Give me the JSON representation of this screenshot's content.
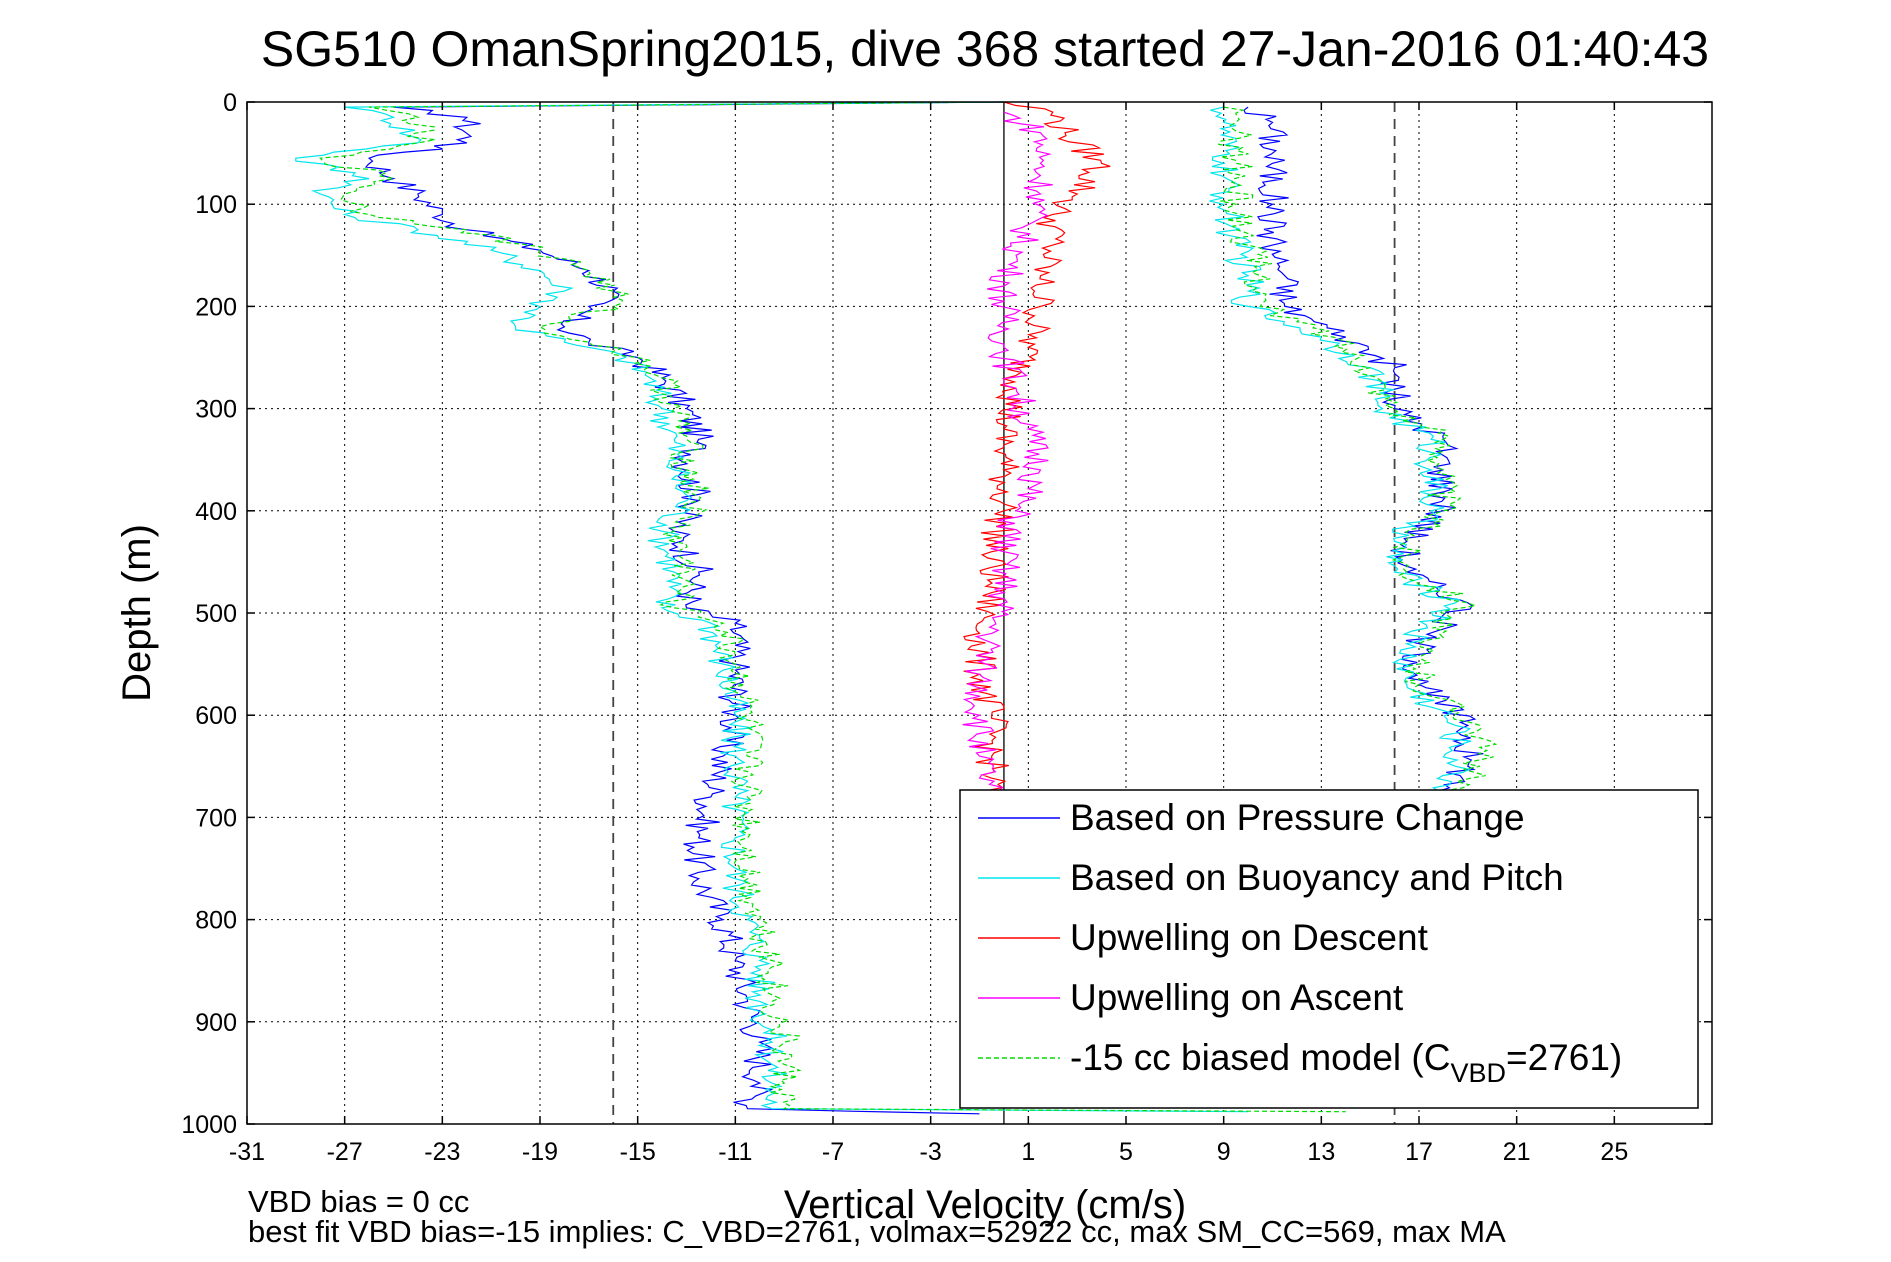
{
  "chart_data": {
    "type": "line",
    "title": "SG510 OmanSpring2015, dive 368 started 27-Jan-2016 01:40:43",
    "xlabel": "Vertical Velocity (cm/s)",
    "ylabel": "Depth (m)",
    "xlim": [
      -31,
      29
    ],
    "ylim": [
      1000,
      0
    ],
    "x_tick_labels": [
      "-31",
      "-27",
      "-23",
      "-19",
      "-15",
      "-11",
      "-7",
      "-3",
      "1",
      "5",
      "9",
      "13",
      "17",
      "21",
      "25"
    ],
    "y_tick_labels": [
      "0",
      "100",
      "200",
      "300",
      "400",
      "500",
      "600",
      "700",
      "800",
      "900",
      "1000"
    ],
    "grid": true,
    "legend_position": "bottom-right",
    "reference_lines": {
      "dashed_x": [
        -16,
        16
      ],
      "solid_x": [
        0
      ]
    },
    "series": [
      {
        "name": "Based on Pressure Change",
        "color": "#0000ff",
        "style": "solid",
        "points": [
          [
            0,
            0
          ],
          [
            -25,
            5
          ],
          [
            -22,
            15
          ],
          [
            -22,
            40
          ],
          [
            -26,
            55
          ],
          [
            -25,
            75
          ],
          [
            -24,
            90
          ],
          [
            -23,
            110
          ],
          [
            -22,
            125
          ],
          [
            -19,
            145
          ],
          [
            -17,
            165
          ],
          [
            -16,
            185
          ],
          [
            -17,
            200
          ],
          [
            -18,
            220
          ],
          [
            -17,
            235
          ],
          [
            -15,
            250
          ],
          [
            -14,
            270
          ],
          [
            -13,
            300
          ],
          [
            -12.5,
            330
          ],
          [
            -13,
            360
          ],
          [
            -12.5,
            390
          ],
          [
            -13.5,
            420
          ],
          [
            -12.5,
            460
          ],
          [
            -13,
            495
          ],
          [
            -11,
            510
          ],
          [
            -11,
            550
          ],
          [
            -11,
            600
          ],
          [
            -11.5,
            640
          ],
          [
            -12,
            680
          ],
          [
            -12.5,
            720
          ],
          [
            -12.5,
            760
          ],
          [
            -11.5,
            800
          ],
          [
            -11,
            840
          ],
          [
            -10.5,
            880
          ],
          [
            -10,
            920
          ],
          [
            -10,
            960
          ],
          [
            -10.5,
            985
          ],
          [
            -1,
            990
          ]
        ]
      },
      {
        "name": "Based on Buoyancy and Pitch",
        "color": "#00e5ee",
        "style": "solid",
        "points": [
          [
            0,
            0
          ],
          [
            -27,
            5
          ],
          [
            -25,
            15
          ],
          [
            -24,
            40
          ],
          [
            -29,
            55
          ],
          [
            -26,
            75
          ],
          [
            -28,
            90
          ],
          [
            -27,
            110
          ],
          [
            -24,
            125
          ],
          [
            -21,
            145
          ],
          [
            -19,
            165
          ],
          [
            -18,
            185
          ],
          [
            -19,
            200
          ],
          [
            -20,
            220
          ],
          [
            -18,
            235
          ],
          [
            -15.5,
            250
          ],
          [
            -14.5,
            270
          ],
          [
            -14,
            300
          ],
          [
            -13.5,
            330
          ],
          [
            -13.5,
            360
          ],
          [
            -13,
            390
          ],
          [
            -14,
            420
          ],
          [
            -13.5,
            460
          ],
          [
            -14,
            495
          ],
          [
            -12,
            510
          ],
          [
            -11.5,
            550
          ],
          [
            -11,
            600
          ],
          [
            -11,
            640
          ],
          [
            -11,
            680
          ],
          [
            -11,
            720
          ],
          [
            -11,
            760
          ],
          [
            -10.5,
            800
          ],
          [
            -10,
            840
          ],
          [
            -10,
            880
          ],
          [
            -9.5,
            920
          ],
          [
            -9.5,
            960
          ],
          [
            -9.5,
            985
          ],
          [
            10,
            988
          ]
        ]
      },
      {
        "name": "Upwelling on Descent",
        "color": "#ff0000",
        "style": "solid",
        "points": [
          [
            0,
            0
          ],
          [
            2,
            10
          ],
          [
            2.5,
            30
          ],
          [
            4,
            60
          ],
          [
            3,
            90
          ],
          [
            2,
            110
          ],
          [
            2,
            140
          ],
          [
            1.5,
            170
          ],
          [
            1.5,
            200
          ],
          [
            1,
            240
          ],
          [
            0.5,
            280
          ],
          [
            0,
            320
          ],
          [
            0,
            360
          ],
          [
            0,
            400
          ],
          [
            -0.5,
            440
          ],
          [
            -0.5,
            480
          ],
          [
            -1,
            520
          ],
          [
            -1,
            560
          ],
          [
            -0.5,
            600
          ],
          [
            -0.5,
            640
          ],
          [
            -0.5,
            680
          ]
        ]
      },
      {
        "name": "Upwelling on Ascent",
        "color": "#ff00ff",
        "style": "solid",
        "points": [
          [
            0,
            10
          ],
          [
            1.5,
            30
          ],
          [
            1.5,
            60
          ],
          [
            1.5,
            90
          ],
          [
            1,
            120
          ],
          [
            0.5,
            150
          ],
          [
            0,
            180
          ],
          [
            0,
            210
          ],
          [
            0,
            240
          ],
          [
            0.5,
            280
          ],
          [
            1,
            320
          ],
          [
            1.5,
            360
          ],
          [
            0.5,
            400
          ],
          [
            0,
            440
          ],
          [
            0,
            480
          ],
          [
            -0.5,
            520
          ],
          [
            -1,
            560
          ],
          [
            -1,
            600
          ],
          [
            -1,
            640
          ],
          [
            -0.5,
            680
          ]
        ]
      },
      {
        "name": "-15 cc biased model (C_VBD=2761)",
        "color": "#00dd00",
        "style": "dashed",
        "points": [
          [
            0,
            0
          ],
          [
            -26,
            5
          ],
          [
            -24,
            15
          ],
          [
            -24,
            40
          ],
          [
            -28,
            55
          ],
          [
            -25,
            75
          ],
          [
            -27,
            90
          ],
          [
            -26,
            110
          ],
          [
            -22,
            125
          ],
          [
            -19,
            145
          ],
          [
            -17,
            165
          ],
          [
            -16,
            185
          ],
          [
            -16,
            200
          ],
          [
            -19,
            220
          ],
          [
            -17,
            235
          ],
          [
            -15,
            250
          ],
          [
            -14,
            270
          ],
          [
            -13.5,
            300
          ],
          [
            -13,
            330
          ],
          [
            -13,
            360
          ],
          [
            -12.5,
            390
          ],
          [
            -13.5,
            420
          ],
          [
            -13,
            460
          ],
          [
            -13.5,
            495
          ],
          [
            -11.5,
            510
          ],
          [
            -11,
            550
          ],
          [
            -10.5,
            600
          ],
          [
            -10.5,
            640
          ],
          [
            -10.5,
            680
          ],
          [
            -10.5,
            720
          ],
          [
            -10.5,
            760
          ],
          [
            -10,
            800
          ],
          [
            -9.5,
            840
          ],
          [
            -9.5,
            880
          ],
          [
            -9,
            920
          ],
          [
            -9,
            960
          ],
          [
            -9,
            985
          ],
          [
            14,
            988
          ]
        ]
      }
    ],
    "right_branch_series": [
      {
        "color": "#0000ff",
        "points": [
          [
            10,
            5
          ],
          [
            11,
            20
          ],
          [
            11,
            60
          ],
          [
            11,
            100
          ],
          [
            11,
            140
          ],
          [
            11.5,
            170
          ],
          [
            11.5,
            200
          ],
          [
            14,
            230
          ],
          [
            16,
            260
          ],
          [
            16,
            300
          ],
          [
            18,
            330
          ],
          [
            18,
            360
          ],
          [
            18,
            400
          ],
          [
            16.5,
            430
          ],
          [
            16.5,
            460
          ],
          [
            19,
            490
          ],
          [
            17,
            530
          ],
          [
            17,
            570
          ],
          [
            19,
            610
          ],
          [
            19,
            650
          ],
          [
            18,
            680
          ]
        ]
      },
      {
        "color": "#00e5ee",
        "points": [
          [
            9,
            5
          ],
          [
            9,
            20
          ],
          [
            9,
            60
          ],
          [
            9,
            100
          ],
          [
            9.5,
            140
          ],
          [
            10,
            170
          ],
          [
            10,
            200
          ],
          [
            13,
            230
          ],
          [
            15,
            260
          ],
          [
            15.5,
            300
          ],
          [
            17.5,
            330
          ],
          [
            17.5,
            360
          ],
          [
            17.5,
            400
          ],
          [
            16,
            430
          ],
          [
            16,
            460
          ],
          [
            18.5,
            490
          ],
          [
            16.5,
            530
          ],
          [
            16.5,
            570
          ],
          [
            18.5,
            610
          ],
          [
            18.5,
            650
          ],
          [
            18,
            680
          ]
        ]
      },
      {
        "color": "#00dd00",
        "points": [
          [
            9,
            5
          ],
          [
            9.5,
            20
          ],
          [
            9.5,
            60
          ],
          [
            9.5,
            100
          ],
          [
            10,
            140
          ],
          [
            10.5,
            170
          ],
          [
            10.5,
            200
          ],
          [
            13.5,
            230
          ],
          [
            15,
            260
          ],
          [
            16,
            300
          ],
          [
            18,
            330
          ],
          [
            18,
            360
          ],
          [
            18,
            400
          ],
          [
            16.5,
            430
          ],
          [
            16.5,
            460
          ],
          [
            19,
            490
          ],
          [
            17,
            530
          ],
          [
            17,
            570
          ],
          [
            19.5,
            610
          ],
          [
            19.5,
            650
          ],
          [
            18,
            680
          ]
        ]
      }
    ],
    "legend": {
      "entries": [
        "Based on Pressure Change",
        "Based on Buoyancy and Pitch",
        "Upwelling on Descent",
        "Upwelling on Ascent",
        "-15 cc biased model (C"
      ],
      "subscript": "VBD",
      "suffix": "=2761)"
    }
  },
  "footer": {
    "line1": "VBD bias = 0 cc",
    "line2": "best fit VBD bias=-15 implies: C_VBD=2761, volmax=52922 cc, max SM_CC=569, max MA"
  }
}
